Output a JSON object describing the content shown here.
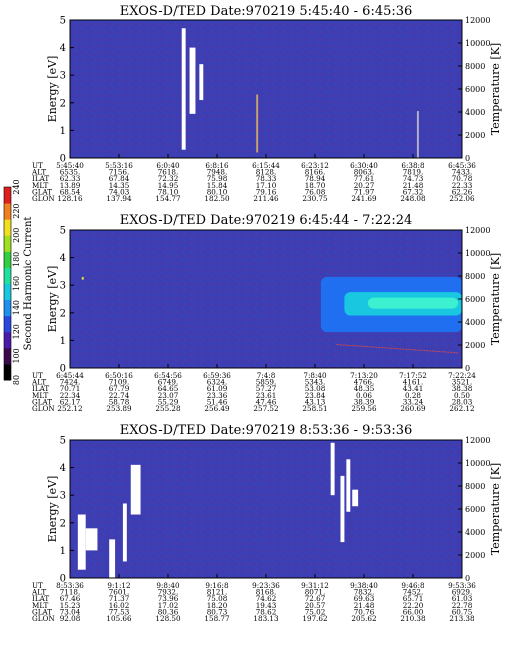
{
  "chart_data": [
    {
      "type": "heatmap",
      "title": "EXOS-D/TED    Date:970219  5:45:40 - 6:45:36",
      "ylabel": "Energy [eV]",
      "y2label": "Temperature [K]",
      "ylim": [
        0,
        5
      ],
      "y2lim": [
        0,
        12000
      ],
      "yticks": [
        "0",
        "1",
        "2",
        "3",
        "4",
        "5"
      ],
      "y2ticks": [
        "0",
        "2000",
        "4000",
        "6000",
        "8000",
        "10000",
        "12000"
      ],
      "background": "#3a3fb5",
      "features": [
        {
          "kind": "saturated",
          "color": "#ffffff",
          "x0": 0.285,
          "x1": 0.295,
          "y0": 0.3,
          "y1": 4.7
        },
        {
          "kind": "saturated",
          "color": "#ffffff",
          "x0": 0.305,
          "x1": 0.32,
          "y0": 1.6,
          "y1": 4.0
        },
        {
          "kind": "saturated",
          "color": "#ffffff",
          "x0": 0.33,
          "x1": 0.34,
          "y0": 2.1,
          "y1": 3.4
        },
        {
          "kind": "line",
          "color": "#c8a070",
          "x0": 0.475,
          "x1": 0.48,
          "y0": 0.2,
          "y1": 2.3
        },
        {
          "kind": "line",
          "color": "#b0b0c8",
          "x0": 0.885,
          "x1": 0.89,
          "y0": 0.0,
          "y1": 1.7
        }
      ],
      "table": {
        "row_labels": [
          "UT",
          "ALT",
          "ILAT",
          "MLT",
          "GLAT",
          "GLON"
        ],
        "columns": [
          [
            "5:45:40",
            "6535.",
            "62.33",
            "13.89",
            "68.54",
            "128.16"
          ],
          [
            "5:53:16",
            "7156.",
            "67.84",
            "14.35",
            "74.03",
            "137.94"
          ],
          [
            "6:0:40",
            "7618.",
            "72.32",
            "14.95",
            "78.10",
            "154.77"
          ],
          [
            "6:8:16",
            "7948.",
            "75.98",
            "15.84",
            "80.10",
            "182.50"
          ],
          [
            "6:15:44",
            "8128.",
            "78.33",
            "17.10",
            "79.16",
            "211.46"
          ],
          [
            "6:23:12",
            "8166.",
            "78.94",
            "18.70",
            "76.08",
            "230.75"
          ],
          [
            "6:30:40",
            "8063.",
            "77.61",
            "20.27",
            "71.97",
            "241.69"
          ],
          [
            "6:38:8",
            "7819.",
            "74.73",
            "21.48",
            "67.32",
            "248.08"
          ],
          [
            "6:45:36",
            "7433.",
            "70.78",
            "22.33",
            "62.26",
            "252.06"
          ]
        ]
      }
    },
    {
      "type": "heatmap",
      "title": "EXOS-D/TED    Date:970219  6:45:44 - 7:22:24",
      "ylabel": "Energy [eV]",
      "y2label": "Temperature [K]",
      "ylim": [
        0,
        5
      ],
      "y2lim": [
        0,
        12000
      ],
      "yticks": [
        "0",
        "1",
        "2",
        "3",
        "4",
        "5"
      ],
      "y2ticks": [
        "0",
        "2000",
        "4000",
        "6000",
        "8000",
        "10000",
        "12000"
      ],
      "background": "#3a3fb5",
      "features": [
        {
          "kind": "band",
          "color": "#1f6ff0",
          "x0": 0.64,
          "x1": 1.0,
          "y0": 1.3,
          "y1": 3.3
        },
        {
          "kind": "band",
          "color": "#19c8e0",
          "x0": 0.7,
          "x1": 1.0,
          "y0": 1.9,
          "y1": 2.75
        },
        {
          "kind": "band",
          "color": "#3df0d0",
          "x0": 0.76,
          "x1": 0.99,
          "y0": 2.15,
          "y1": 2.55
        },
        {
          "kind": "line",
          "color": "#d24a4a",
          "x0": 0.68,
          "x1": 0.99,
          "y0": 0.85,
          "y1": 0.55
        },
        {
          "kind": "dot",
          "color": "#e0e040",
          "x0": 0.03,
          "x1": 0.035,
          "y0": 3.2,
          "y1": 3.3
        }
      ],
      "table": {
        "row_labels": [
          "UT",
          "ALT",
          "ILAT",
          "MLT",
          "GLAT",
          "GLON"
        ],
        "columns": [
          [
            "6:45:44",
            "7424.",
            "70.71",
            "22.34",
            "62.17",
            "252.12"
          ],
          [
            "6:50:16",
            "7109.",
            "67.79",
            "22.74",
            "58.78",
            "253.89"
          ],
          [
            "6:54:56",
            "6749.",
            "64.65",
            "23.07",
            "55.29",
            "255.28"
          ],
          [
            "6:59:36",
            "6324.",
            "61.09",
            "23.36",
            "51.46",
            "256.49"
          ],
          [
            "7:4:8",
            "5859.",
            "57.27",
            "23.61",
            "47.46",
            "257.52"
          ],
          [
            "7:8:40",
            "5343.",
            "53.08",
            "23.84",
            "43.13",
            "258.51"
          ],
          [
            "7:13:20",
            "4766.",
            "48.35",
            "0.06",
            "38.39",
            "259.56"
          ],
          [
            "7:17:52",
            "4161.",
            "43.41",
            "0.28",
            "33.24",
            "260.69"
          ],
          [
            "7:22:24",
            "3521.",
            "38.38",
            "0.50",
            "28.03",
            "262.12"
          ]
        ]
      }
    },
    {
      "type": "heatmap",
      "title": "EXOS-D/TED    Date:970219  8:53:36 - 9:53:36",
      "ylabel": "Energy [eV]",
      "y2label": "Temperature [K]",
      "ylim": [
        0,
        5
      ],
      "y2lim": [
        0,
        12000
      ],
      "yticks": [
        "0",
        "1",
        "2",
        "3",
        "4",
        "5"
      ],
      "y2ticks": [
        "0",
        "2000",
        "4000",
        "6000",
        "8000",
        "10000",
        "12000"
      ],
      "background": "#3a3fb5",
      "features": [
        {
          "kind": "saturated",
          "color": "#ffffff",
          "x0": 0.02,
          "x1": 0.04,
          "y0": 0.3,
          "y1": 2.3
        },
        {
          "kind": "saturated",
          "color": "#ffffff",
          "x0": 0.04,
          "x1": 0.07,
          "y0": 1.0,
          "y1": 1.8
        },
        {
          "kind": "saturated",
          "color": "#ffffff",
          "x0": 0.1,
          "x1": 0.115,
          "y0": 0.0,
          "y1": 1.4
        },
        {
          "kind": "saturated",
          "color": "#ffffff",
          "x0": 0.135,
          "x1": 0.145,
          "y0": 0.6,
          "y1": 2.7
        },
        {
          "kind": "saturated",
          "color": "#ffffff",
          "x0": 0.155,
          "x1": 0.18,
          "y0": 2.3,
          "y1": 4.1
        },
        {
          "kind": "saturated",
          "color": "#ffffff",
          "x0": 0.665,
          "x1": 0.675,
          "y0": 3.0,
          "y1": 4.9
        },
        {
          "kind": "saturated",
          "color": "#ffffff",
          "x0": 0.69,
          "x1": 0.7,
          "y0": 1.3,
          "y1": 3.7
        },
        {
          "kind": "saturated",
          "color": "#ffffff",
          "x0": 0.705,
          "x1": 0.715,
          "y0": 2.4,
          "y1": 4.3
        },
        {
          "kind": "saturated",
          "color": "#ffffff",
          "x0": 0.72,
          "x1": 0.735,
          "y0": 2.6,
          "y1": 3.2
        }
      ],
      "table": {
        "row_labels": [
          "UT",
          "ALT",
          "ILAT",
          "MLT",
          "GLAT",
          "GLON"
        ],
        "columns": [
          [
            "8:53:36",
            "7118.",
            "67.46",
            "15.23",
            "73.04",
            "92.08"
          ],
          [
            "9:1:12",
            "7601.",
            "71.37",
            "16.02",
            "77.53",
            "105.66"
          ],
          [
            "9:8:40",
            "7932.",
            "73.96",
            "17.02",
            "80.36",
            "128.50"
          ],
          [
            "9:16:8",
            "8121.",
            "75.08",
            "18.20",
            "80.73",
            "158.77"
          ],
          [
            "9:23:36",
            "8168.",
            "74.62",
            "19.43",
            "78.62",
            "183.13"
          ],
          [
            "9:31:12",
            "8071.",
            "72.67",
            "20.57",
            "75.02",
            "197.62"
          ],
          [
            "9:38:40",
            "7832.",
            "69.63",
            "21.48",
            "70.76",
            "205.62"
          ],
          [
            "9:46:8",
            "7452.",
            "65.71",
            "22.20",
            "66.00",
            "210.38"
          ],
          [
            "9:53:36",
            "6929.",
            "61.03",
            "22.78",
            "60.75",
            "213.38"
          ]
        ]
      }
    }
  ],
  "colorbar": {
    "label": "Second Harmonic Current",
    "ticks": [
      "80",
      "100",
      "120",
      "140",
      "160",
      "180",
      "200",
      "220",
      "240"
    ],
    "range": [
      80,
      240
    ],
    "colors": [
      "#000000",
      "#3b0a4d",
      "#4a1aa8",
      "#2a48e0",
      "#1f8ff0",
      "#19c8e0",
      "#20e0a0",
      "#30d040",
      "#a0e020",
      "#f0e020",
      "#f08020",
      "#e02020"
    ]
  }
}
